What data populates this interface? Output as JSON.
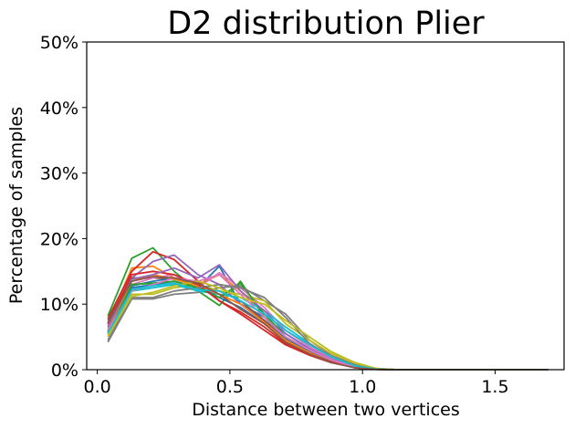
{
  "chart_data": {
    "type": "line",
    "title": "D2 distribution Plier",
    "xlabel": "Distance between two vertices",
    "ylabel": "Percentage of samples",
    "xlim": [
      -0.04,
      1.76
    ],
    "ylim": [
      0,
      50
    ],
    "x_ticks": [
      0.0,
      0.5,
      1.0,
      1.5
    ],
    "x_tick_labels": [
      "0.0",
      "0.5",
      "1.0",
      "1.5"
    ],
    "y_ticks": [
      0,
      10,
      20,
      30,
      40,
      50
    ],
    "y_tick_labels": [
      "0%",
      "10%",
      "20%",
      "30%",
      "40%",
      "50%"
    ],
    "grid": false,
    "x": [
      0.04,
      0.13,
      0.21,
      0.29,
      0.38,
      0.46,
      0.54,
      0.63,
      0.71,
      0.8,
      0.88,
      0.97,
      1.05,
      1.13,
      1.22,
      1.3,
      1.39,
      1.47,
      1.55,
      1.64,
      1.7
    ],
    "series": [
      {
        "color": "#1f77b4",
        "values": [
          6.5,
          12.5,
          13.0,
          13.5,
          12.5,
          15.8,
          10.0,
          8.0,
          5.5,
          3.2,
          1.5,
          0.4,
          0.1,
          0,
          0,
          0,
          0,
          0,
          0,
          0,
          0
        ]
      },
      {
        "color": "#ff7f0e",
        "values": [
          7.0,
          15.5,
          15.8,
          14.0,
          13.0,
          14.5,
          12.0,
          8.5,
          5.0,
          3.0,
          1.8,
          0.5,
          0.1,
          0,
          0,
          0,
          0,
          0,
          0,
          0,
          0
        ]
      },
      {
        "color": "#2ca02c",
        "values": [
          8.2,
          17.0,
          18.6,
          15.0,
          12.0,
          9.8,
          13.5,
          8.0,
          4.5,
          2.6,
          1.4,
          0.3,
          0.05,
          0,
          0,
          0,
          0,
          0,
          0,
          0,
          0
        ]
      },
      {
        "color": "#d62728",
        "values": [
          7.8,
          15.0,
          18.0,
          16.8,
          13.5,
          10.5,
          8.5,
          6.0,
          3.8,
          2.2,
          1.1,
          0.3,
          0.05,
          0,
          0,
          0,
          0,
          0,
          0,
          0,
          0
        ]
      },
      {
        "color": "#9467bd",
        "values": [
          6.0,
          14.0,
          16.5,
          17.5,
          14.5,
          13.0,
          10.0,
          7.5,
          4.8,
          2.8,
          1.5,
          0.4,
          0.1,
          0,
          0,
          0,
          0,
          0,
          0,
          0,
          0
        ]
      },
      {
        "color": "#8c564b",
        "values": [
          7.5,
          14.0,
          14.0,
          13.8,
          13.0,
          12.0,
          10.5,
          7.5,
          4.5,
          2.5,
          1.2,
          0.3,
          0.05,
          0,
          0,
          0,
          0,
          0,
          0,
          0,
          0
        ]
      },
      {
        "color": "#e377c2",
        "values": [
          6.8,
          13.0,
          14.0,
          14.5,
          12.5,
          14.8,
          12.5,
          9.5,
          6.0,
          3.5,
          1.8,
          0.5,
          0.1,
          0,
          0,
          0,
          0,
          0,
          0,
          0,
          0
        ]
      },
      {
        "color": "#7f7f7f",
        "values": [
          4.2,
          10.8,
          10.8,
          11.5,
          11.8,
          12.5,
          12.8,
          10.5,
          8.5,
          4.5,
          2.2,
          0.8,
          0.15,
          0,
          0,
          0,
          0,
          0,
          0,
          0,
          0
        ]
      },
      {
        "color": "#bcbd22",
        "values": [
          5.0,
          11.5,
          11.5,
          12.5,
          13.0,
          12.0,
          11.5,
          10.5,
          7.0,
          4.5,
          2.5,
          1.0,
          0.2,
          0,
          0,
          0,
          0,
          0,
          0,
          0,
          0
        ]
      },
      {
        "color": "#17becf",
        "values": [
          5.5,
          12.0,
          12.5,
          13.0,
          12.0,
          11.5,
          11.0,
          9.0,
          6.5,
          4.0,
          2.0,
          0.6,
          0.1,
          0,
          0,
          0,
          0,
          0,
          0,
          0,
          0
        ]
      },
      {
        "color": "#1f77b4",
        "values": [
          5.8,
          12.8,
          13.5,
          14.0,
          12.8,
          11.0,
          9.5,
          7.0,
          4.8,
          2.8,
          1.3,
          0.3,
          0.05,
          0,
          0,
          0,
          0,
          0,
          0,
          0,
          0
        ]
      },
      {
        "color": "#ff7f0e",
        "values": [
          6.2,
          13.5,
          14.5,
          13.8,
          12.8,
          11.5,
          10.0,
          7.2,
          4.5,
          2.6,
          1.2,
          0.3,
          0.05,
          0,
          0,
          0,
          0,
          0,
          0,
          0,
          0
        ]
      },
      {
        "color": "#2ca02c",
        "values": [
          5.5,
          13.0,
          13.2,
          13.5,
          12.5,
          11.0,
          13.2,
          8.5,
          5.0,
          3.0,
          1.5,
          0.4,
          0.1,
          0,
          0,
          0,
          0,
          0,
          0,
          0,
          0
        ]
      },
      {
        "color": "#d62728",
        "values": [
          7.0,
          14.5,
          15.0,
          14.5,
          13.0,
          10.5,
          8.8,
          6.5,
          4.0,
          2.4,
          1.2,
          0.3,
          0.05,
          0,
          0,
          0,
          0,
          0,
          0,
          0,
          0
        ]
      },
      {
        "color": "#9467bd",
        "values": [
          6.5,
          13.8,
          14.5,
          15.5,
          14.0,
          16.0,
          12.0,
          9.0,
          5.5,
          3.2,
          1.6,
          0.4,
          0.1,
          0,
          0,
          0,
          0,
          0,
          0,
          0,
          0
        ]
      },
      {
        "color": "#e377c2",
        "values": [
          6.0,
          12.0,
          13.0,
          14.0,
          13.5,
          14.5,
          11.5,
          8.0,
          5.0,
          3.0,
          1.5,
          0.4,
          0.1,
          0,
          0,
          0,
          0,
          0,
          0,
          0,
          0
        ]
      },
      {
        "color": "#7f7f7f",
        "values": [
          4.5,
          11.0,
          11.0,
          12.0,
          12.5,
          13.0,
          12.5,
          11.0,
          8.0,
          4.0,
          2.0,
          0.7,
          0.1,
          0,
          0,
          0,
          0,
          0,
          0,
          0,
          0
        ]
      },
      {
        "color": "#bcbd22",
        "values": [
          5.2,
          11.2,
          11.8,
          12.8,
          13.5,
          12.5,
          11.0,
          10.0,
          7.5,
          5.0,
          2.8,
          1.1,
          0.2,
          0,
          0,
          0,
          0,
          0,
          0,
          0,
          0
        ]
      },
      {
        "color": "#17becf",
        "values": [
          5.6,
          12.2,
          12.8,
          13.2,
          12.2,
          12.0,
          10.5,
          8.5,
          6.0,
          3.8,
          2.0,
          0.6,
          0.1,
          0,
          0,
          0,
          0,
          0,
          0,
          0,
          0
        ]
      },
      {
        "color": "#8c564b",
        "values": [
          7.2,
          13.5,
          14.2,
          14.0,
          13.2,
          11.5,
          9.2,
          7.0,
          4.2,
          2.4,
          1.1,
          0.3,
          0.05,
          0,
          0,
          0,
          0,
          0,
          0,
          0,
          0
        ]
      }
    ]
  }
}
